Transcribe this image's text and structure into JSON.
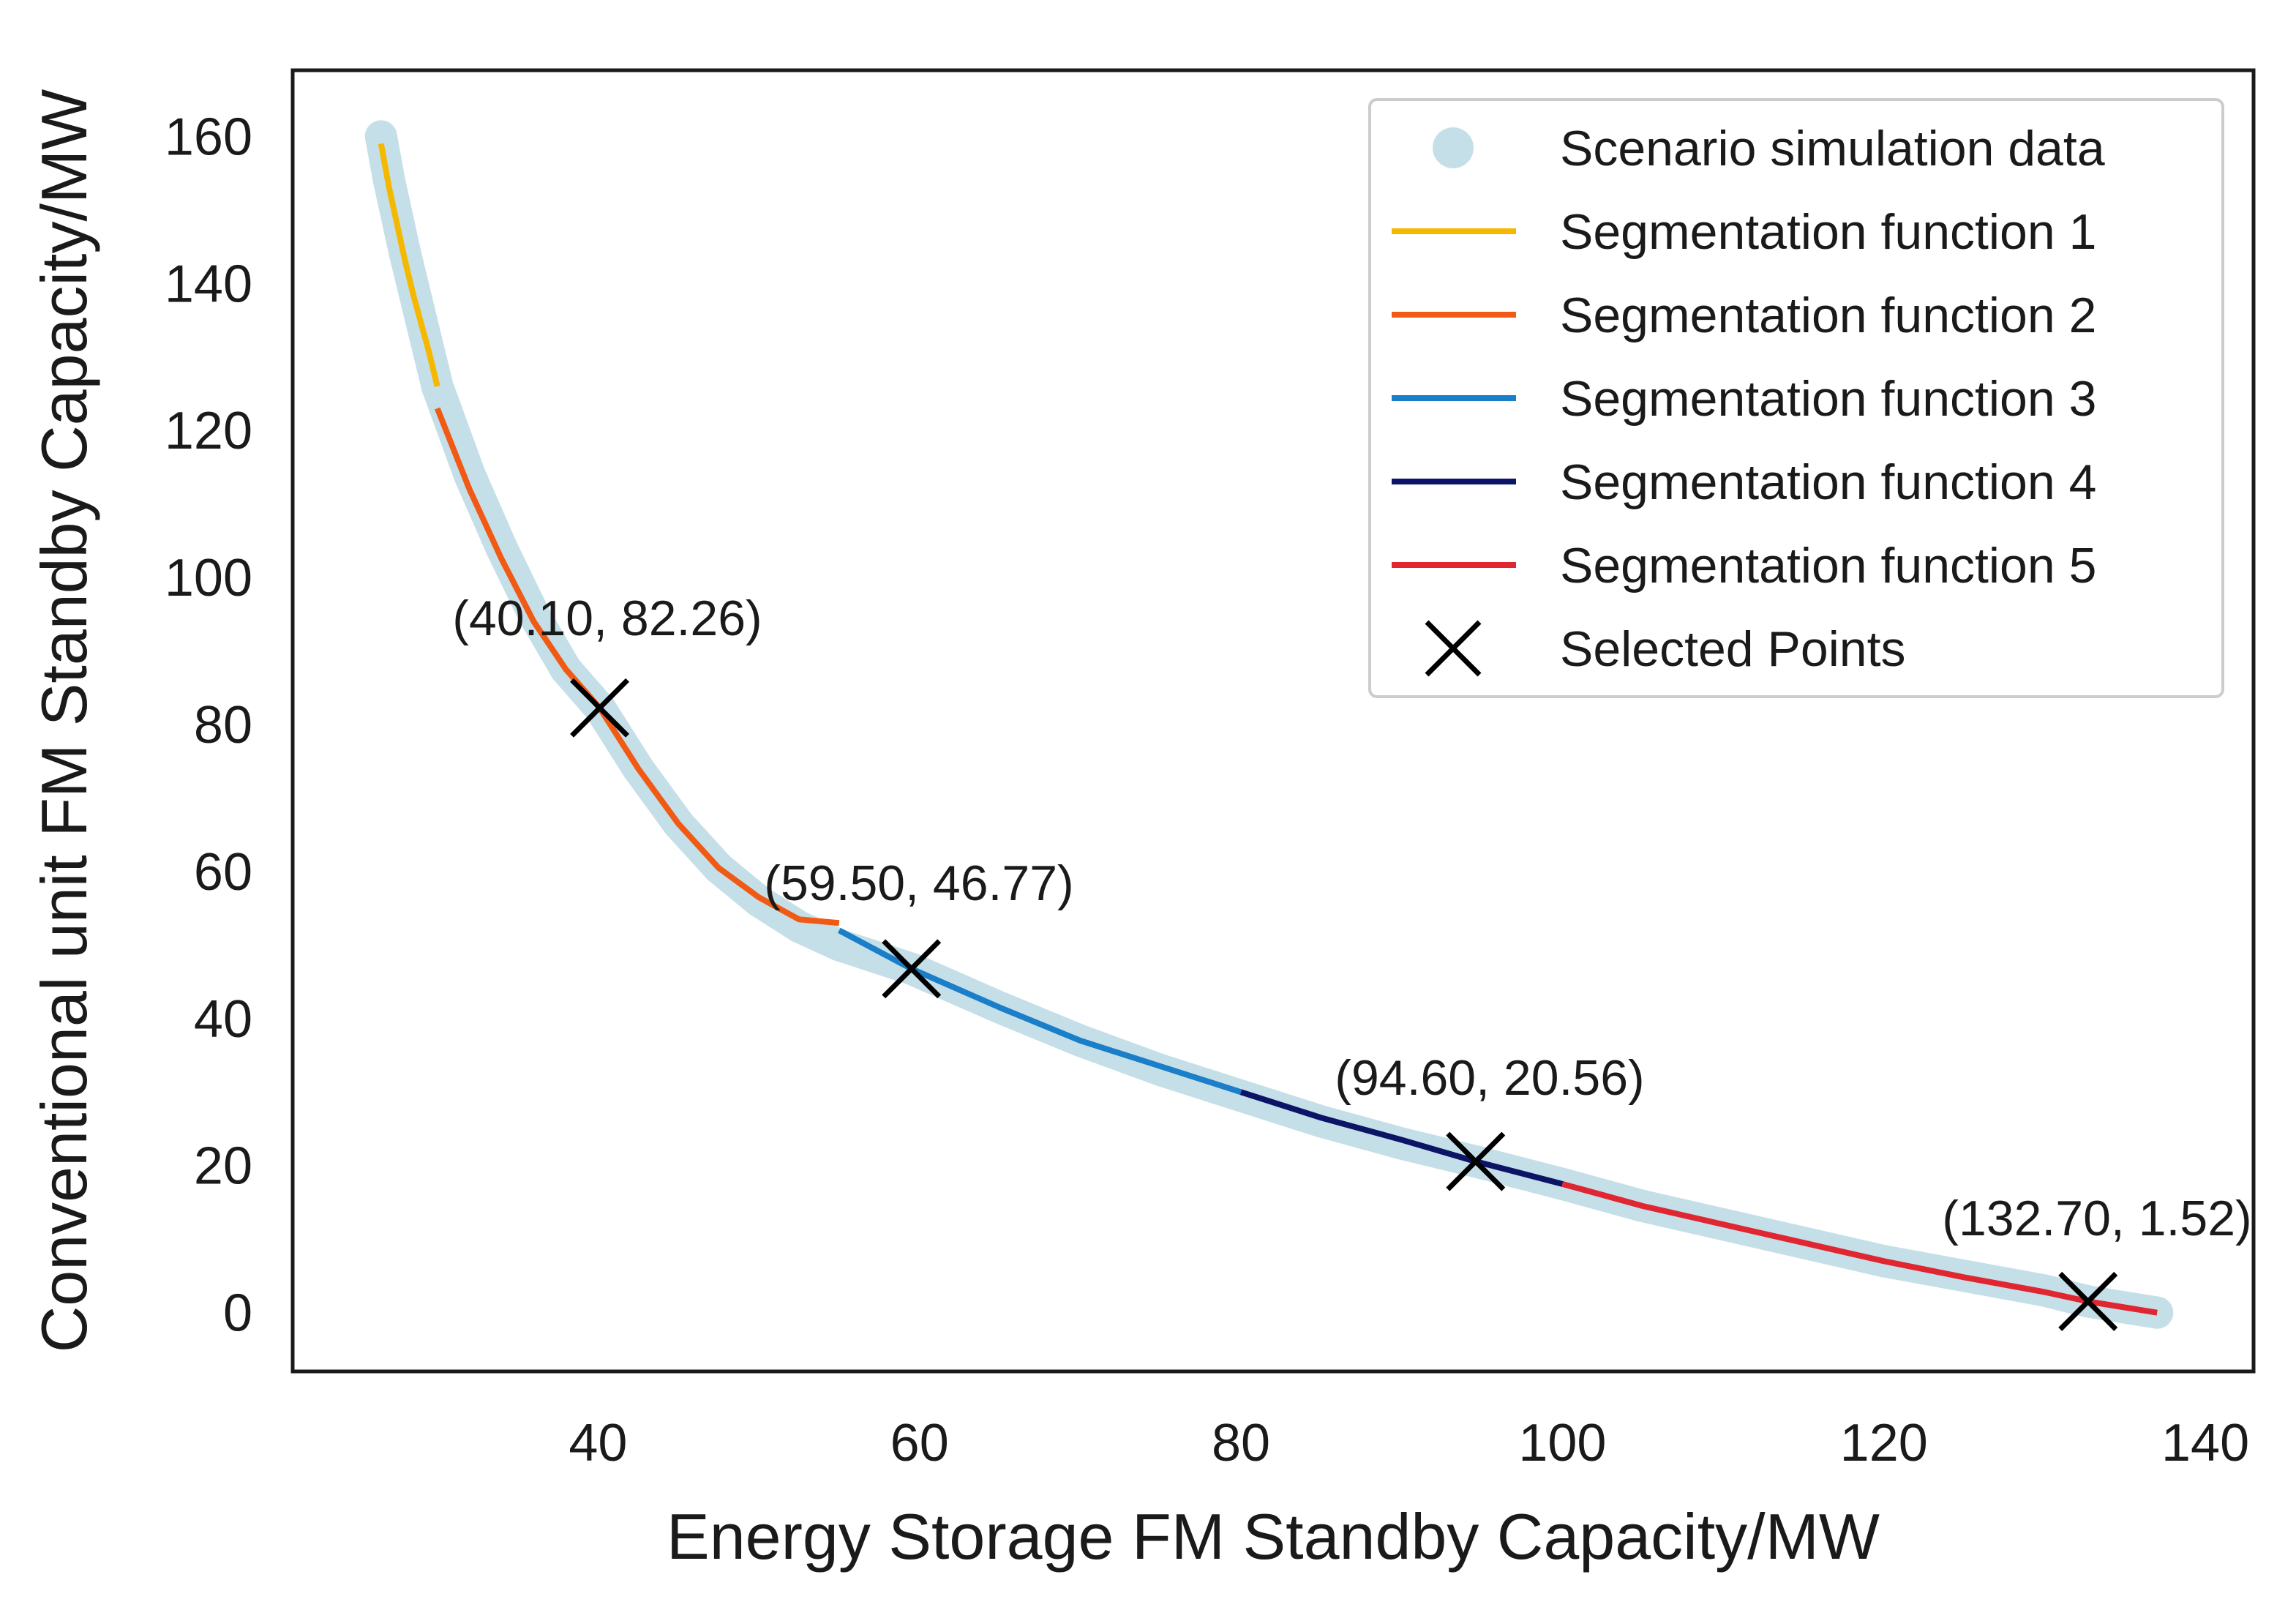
{
  "chart_data": {
    "type": "line",
    "xlabel": "Energy Storage FM Standby Capacity/MW",
    "ylabel": "Conventional unit FM Standby Capacity/MW",
    "xlim": [
      21,
      143
    ],
    "ylim": [
      -8,
      169
    ],
    "xticks": [
      40,
      60,
      80,
      100,
      120,
      140
    ],
    "yticks": [
      0,
      20,
      40,
      60,
      80,
      100,
      120,
      140,
      160
    ],
    "grid": false,
    "legend_position": "top-right",
    "series": [
      {
        "name": "Scenario simulation data",
        "kind": "scatter",
        "color": "#c5dfe8",
        "x": [
          26.5,
          27.0,
          28.0,
          29.0,
          30.0,
          32.0,
          34.0,
          36.0,
          38.0,
          40.1,
          42.5,
          45.0,
          47.5,
          50.0,
          52.5,
          55.0,
          59.5,
          65.0,
          70.0,
          75.0,
          80.0,
          85.0,
          90.0,
          94.6,
          100.0,
          105.0,
          110.0,
          115.0,
          120.0,
          125.0,
          130.0,
          132.7,
          135.0,
          137.0
        ],
        "y": [
          160.0,
          154.0,
          144.0,
          135.0,
          126.0,
          114.0,
          104.0,
          95.0,
          87.5,
          82.26,
          74.0,
          66.5,
          60.5,
          56.0,
          52.5,
          50.0,
          46.77,
          41.5,
          37.0,
          33.0,
          29.5,
          26.0,
          23.0,
          20.56,
          17.5,
          14.5,
          12.0,
          9.5,
          7.0,
          5.0,
          3.0,
          1.52,
          0.7,
          0.0
        ]
      },
      {
        "name": "Segmentation function 1",
        "color": "#f5b800",
        "x": [
          26.5,
          27.0,
          27.5,
          28.0,
          28.5,
          29.0,
          29.5,
          30.0
        ],
        "y": [
          159.0,
          153.0,
          148.0,
          143.0,
          138.5,
          134.5,
          130.5,
          126.0
        ]
      },
      {
        "name": "Segmentation function 2",
        "color": "#f05a14",
        "x": [
          30.0,
          32.0,
          34.0,
          36.0,
          38.0,
          40.1,
          42.5,
          45.0,
          47.5,
          50.0,
          52.5,
          55.0
        ],
        "y": [
          123.0,
          112.0,
          102.5,
          94.0,
          87.5,
          82.26,
          74.0,
          66.5,
          60.5,
          56.5,
          53.5,
          53.0
        ]
      },
      {
        "name": "Segmentation function 3",
        "color": "#1a7ec8",
        "x": [
          55.0,
          59.5,
          65.0,
          70.0,
          75.0,
          80.0
        ],
        "y": [
          52.0,
          46.77,
          41.5,
          37.0,
          33.5,
          30.0
        ]
      },
      {
        "name": "Segmentation function 4",
        "color": "#0c1466",
        "x": [
          80.0,
          85.0,
          90.0,
          94.6,
          100.0
        ],
        "y": [
          30.0,
          26.5,
          23.5,
          20.56,
          17.5
        ]
      },
      {
        "name": "Segmentation function 5",
        "color": "#e02630",
        "x": [
          100.0,
          105.0,
          110.0,
          115.0,
          120.0,
          125.0,
          130.0,
          132.7,
          137.0
        ],
        "y": [
          17.5,
          14.5,
          12.0,
          9.5,
          7.0,
          4.8,
          2.8,
          1.52,
          0.0
        ]
      },
      {
        "name": "Selected Points",
        "kind": "marker-x",
        "color": "#000000",
        "x": [
          40.1,
          59.5,
          94.6,
          132.7
        ],
        "y": [
          82.26,
          46.77,
          20.56,
          1.52
        ]
      }
    ],
    "annotations": [
      "(40.10, 82.26)",
      "(59.50, 46.77)",
      "(94.60, 20.56)",
      "(132.70, 1.52)"
    ]
  }
}
